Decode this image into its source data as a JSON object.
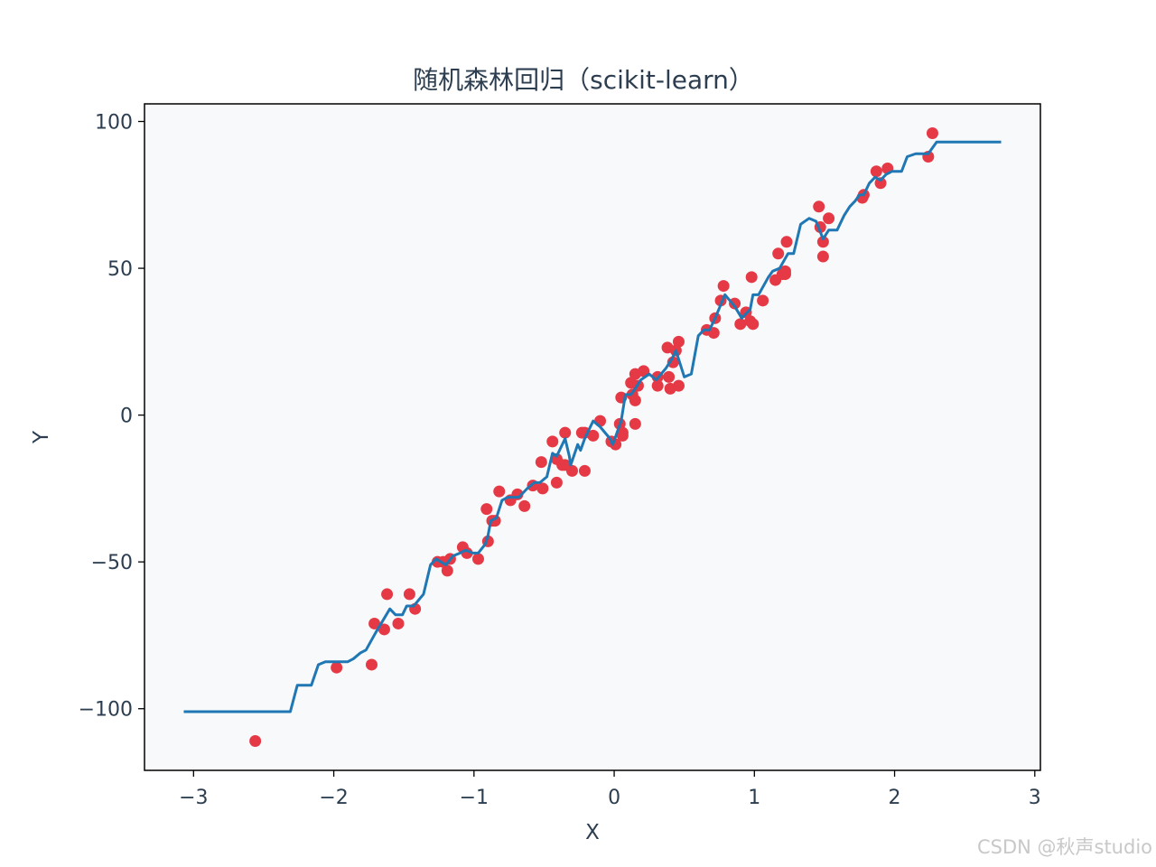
{
  "chart_data": {
    "type": "scatter+line",
    "title": "随机森林回归（scikit-learn）",
    "xlabel": "X",
    "ylabel": "Y",
    "xlim": [
      -3.35,
      3.04
    ],
    "ylim": [
      -121,
      106
    ],
    "xticks": [
      -3,
      -2,
      -1,
      0,
      1,
      2,
      3
    ],
    "xtick_labels": [
      "−3",
      "−2",
      "−1",
      "0",
      "1",
      "2",
      "3"
    ],
    "yticks": [
      -100,
      -50,
      0,
      50,
      100
    ],
    "ytick_labels": [
      "−100",
      "−50",
      "0",
      "50",
      "100"
    ],
    "grid": false,
    "background": "#f8f9fa",
    "scatter": {
      "color": "#e63946",
      "points": [
        [
          -2.56,
          -111
        ],
        [
          -1.98,
          -86
        ],
        [
          -1.73,
          -85
        ],
        [
          -1.71,
          -71
        ],
        [
          -1.64,
          -73
        ],
        [
          -1.62,
          -61
        ],
        [
          -1.54,
          -71
        ],
        [
          -1.46,
          -61
        ],
        [
          -1.42,
          -66
        ],
        [
          -1.26,
          -50
        ],
        [
          -1.22,
          -50
        ],
        [
          -1.19,
          -53
        ],
        [
          -1.17,
          -49
        ],
        [
          -1.08,
          -45
        ],
        [
          -1.05,
          -47
        ],
        [
          -0.97,
          -49
        ],
        [
          -0.9,
          -43
        ],
        [
          -0.91,
          -32
        ],
        [
          -0.87,
          -36
        ],
        [
          -0.85,
          -36
        ],
        [
          -0.82,
          -26
        ],
        [
          -0.74,
          -29
        ],
        [
          -0.69,
          -27
        ],
        [
          -0.64,
          -31
        ],
        [
          -0.58,
          -24
        ],
        [
          -0.52,
          -16
        ],
        [
          -0.51,
          -25
        ],
        [
          -0.44,
          -9
        ],
        [
          -0.41,
          -23
        ],
        [
          -0.41,
          -15
        ],
        [
          -0.37,
          -17
        ],
        [
          -0.35,
          -6
        ],
        [
          -0.35,
          -17
        ],
        [
          -0.3,
          -19
        ],
        [
          -0.23,
          -6
        ],
        [
          -0.21,
          -19
        ],
        [
          -0.21,
          -6
        ],
        [
          -0.15,
          -7
        ],
        [
          -0.1,
          -2
        ],
        [
          -0.02,
          -9
        ],
        [
          0.01,
          -10
        ],
        [
          0.04,
          -3
        ],
        [
          0.05,
          6
        ],
        [
          0.06,
          -7
        ],
        [
          0.06,
          -6
        ],
        [
          0.12,
          11
        ],
        [
          0.13,
          7
        ],
        [
          0.15,
          14
        ],
        [
          0.15,
          5
        ],
        [
          0.15,
          -3
        ],
        [
          0.17,
          10
        ],
        [
          0.21,
          15
        ],
        [
          0.31,
          10
        ],
        [
          0.31,
          13
        ],
        [
          0.38,
          23
        ],
        [
          0.4,
          9
        ],
        [
          0.42,
          18
        ],
        [
          0.39,
          13
        ],
        [
          0.44,
          22
        ],
        [
          0.46,
          10
        ],
        [
          0.46,
          25
        ],
        [
          0.66,
          29
        ],
        [
          0.71,
          28
        ],
        [
          0.72,
          33
        ],
        [
          0.76,
          39
        ],
        [
          0.78,
          44
        ],
        [
          0.86,
          38
        ],
        [
          0.9,
          31
        ],
        [
          0.94,
          35
        ],
        [
          0.97,
          32
        ],
        [
          0.98,
          47
        ],
        [
          0.99,
          31
        ],
        [
          1.06,
          39
        ],
        [
          1.15,
          46
        ],
        [
          1.17,
          55
        ],
        [
          1.2,
          48
        ],
        [
          1.22,
          48
        ],
        [
          1.22,
          49
        ],
        [
          1.23,
          59
        ],
        [
          1.46,
          71
        ],
        [
          1.47,
          64
        ],
        [
          1.49,
          54
        ],
        [
          1.49,
          59
        ],
        [
          1.53,
          67
        ],
        [
          1.77,
          74
        ],
        [
          1.78,
          75
        ],
        [
          1.87,
          83
        ],
        [
          1.9,
          79
        ],
        [
          1.95,
          84
        ],
        [
          2.24,
          88
        ],
        [
          2.27,
          96
        ]
      ]
    },
    "line": {
      "color": "#1f77b4",
      "points": [
        [
          -3.07,
          -101
        ],
        [
          -2.31,
          -101
        ],
        [
          -2.26,
          -92
        ],
        [
          -2.16,
          -92
        ],
        [
          -2.11,
          -85
        ],
        [
          -2.06,
          -84
        ],
        [
          -1.9,
          -84
        ],
        [
          -1.86,
          -83
        ],
        [
          -1.81,
          -81
        ],
        [
          -1.77,
          -80
        ],
        [
          -1.7,
          -74
        ],
        [
          -1.6,
          -66
        ],
        [
          -1.56,
          -68
        ],
        [
          -1.51,
          -68
        ],
        [
          -1.48,
          -65
        ],
        [
          -1.43,
          -65
        ],
        [
          -1.36,
          -61
        ],
        [
          -1.31,
          -51
        ],
        [
          -1.27,
          -49
        ],
        [
          -1.2,
          -51
        ],
        [
          -1.15,
          -48
        ],
        [
          -1.1,
          -47
        ],
        [
          -1.06,
          -46
        ],
        [
          -1.01,
          -47
        ],
        [
          -0.97,
          -47
        ],
        [
          -0.92,
          -44
        ],
        [
          -0.9,
          -41
        ],
        [
          -0.88,
          -36
        ],
        [
          -0.84,
          -35
        ],
        [
          -0.8,
          -29
        ],
        [
          -0.76,
          -28
        ],
        [
          -0.68,
          -28
        ],
        [
          -0.62,
          -25
        ],
        [
          -0.57,
          -23
        ],
        [
          -0.53,
          -23
        ],
        [
          -0.48,
          -21
        ],
        [
          -0.44,
          -13
        ],
        [
          -0.41,
          -14
        ],
        [
          -0.37,
          -10
        ],
        [
          -0.35,
          -8
        ],
        [
          -0.32,
          -14
        ],
        [
          -0.31,
          -17
        ],
        [
          -0.26,
          -10
        ],
        [
          -0.24,
          -12
        ],
        [
          -0.21,
          -8
        ],
        [
          -0.15,
          -2
        ],
        [
          -0.1,
          -4
        ],
        [
          -0.03,
          -8
        ],
        [
          -0.01,
          -10
        ],
        [
          0.05,
          -2
        ],
        [
          0.08,
          7
        ],
        [
          0.12,
          7
        ],
        [
          0.15,
          9
        ],
        [
          0.19,
          12
        ],
        [
          0.25,
          14
        ],
        [
          0.3,
          12
        ],
        [
          0.37,
          16
        ],
        [
          0.41,
          19
        ],
        [
          0.44,
          22
        ],
        [
          0.5,
          13
        ],
        [
          0.55,
          14
        ],
        [
          0.6,
          27
        ],
        [
          0.64,
          29
        ],
        [
          0.68,
          29
        ],
        [
          0.72,
          33
        ],
        [
          0.79,
          41
        ],
        [
          0.86,
          37
        ],
        [
          0.91,
          33
        ],
        [
          0.97,
          36
        ],
        [
          0.99,
          41
        ],
        [
          1.03,
          41
        ],
        [
          1.1,
          47
        ],
        [
          1.13,
          49
        ],
        [
          1.18,
          50
        ],
        [
          1.24,
          55
        ],
        [
          1.28,
          55
        ],
        [
          1.33,
          65
        ],
        [
          1.39,
          67
        ],
        [
          1.44,
          66
        ],
        [
          1.49,
          60
        ],
        [
          1.53,
          63
        ],
        [
          1.59,
          63
        ],
        [
          1.64,
          68
        ],
        [
          1.68,
          71
        ],
        [
          1.72,
          73
        ],
        [
          1.75,
          75
        ],
        [
          1.78,
          75
        ],
        [
          1.82,
          79
        ],
        [
          1.86,
          81
        ],
        [
          1.9,
          80
        ],
        [
          1.94,
          82
        ],
        [
          1.98,
          83
        ],
        [
          2.05,
          83
        ],
        [
          2.09,
          88
        ],
        [
          2.15,
          89
        ],
        [
          2.24,
          89
        ],
        [
          2.3,
          93
        ],
        [
          2.76,
          93
        ]
      ]
    }
  },
  "watermark": "CSDN @秋声studio"
}
